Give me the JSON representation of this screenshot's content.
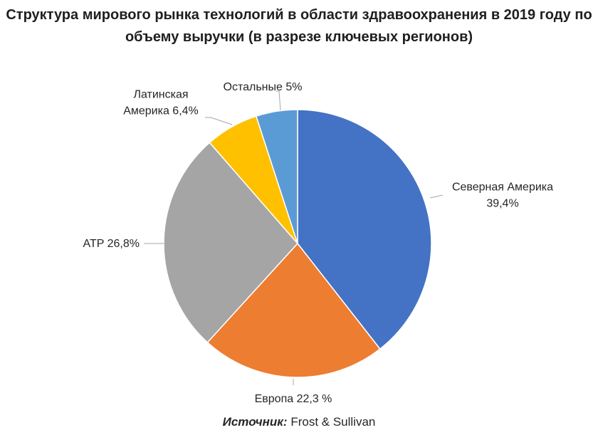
{
  "title": {
    "line1": "Структура мирового рынка технологий в области здравоохранения в 2019 году по",
    "line2": "объему выручки (в разрезе ключевых регионов)"
  },
  "source": {
    "label": "Источник:",
    "value": "Frost & Sullivan"
  },
  "chart_data": {
    "type": "pie",
    "start": "12 o'clock",
    "direction": "clockwise",
    "legend": "none",
    "slices": [
      {
        "label": "Северная Америка",
        "value": 39.4,
        "display": "39,4%",
        "color": "#4472C4",
        "label_lines": [
          "Северная Америка",
          "39,4%"
        ]
      },
      {
        "label": "Европа",
        "value": 22.3,
        "display": "22,3 %",
        "color": "#ED7D31",
        "label_lines": [
          "Европа 22,3 %"
        ]
      },
      {
        "label": "ATP",
        "value": 26.8,
        "display": "26,8%",
        "color": "#A5A5A5",
        "label_lines": [
          "ATP 26,8%"
        ]
      },
      {
        "label": "Латинская Америка",
        "value": 6.4,
        "display": "6,4%",
        "color": "#FFC000",
        "label_lines": [
          "Латинская",
          "Америка 6,4%"
        ]
      },
      {
        "label": "Остальные",
        "value": 5,
        "display": "5%",
        "color": "#5B9BD5",
        "label_lines": [
          "Остальные 5%"
        ]
      }
    ]
  }
}
